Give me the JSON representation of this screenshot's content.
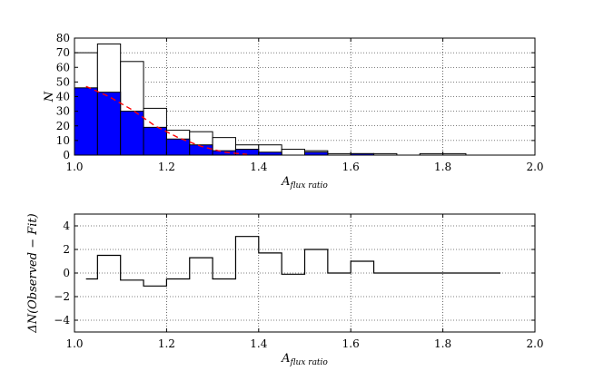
{
  "chart_data": [
    {
      "type": "bar",
      "title": "",
      "xlabel": "A",
      "xlabel_subscript": "flux ratio",
      "ylabel": "N",
      "xlim": [
        1.0,
        2.0
      ],
      "ylim": [
        0,
        80
      ],
      "xticks": [
        "1.0",
        "1.2",
        "1.4",
        "1.6",
        "1.8",
        "2.0"
      ],
      "yticks": [
        "0",
        "10",
        "20",
        "30",
        "40",
        "50",
        "60",
        "70",
        "80"
      ],
      "grid": true,
      "bin_width": 0.05,
      "bin_left_edges": [
        1.0,
        1.05,
        1.1,
        1.15,
        1.2,
        1.25,
        1.3,
        1.35,
        1.4,
        1.45,
        1.5,
        1.55,
        1.6,
        1.65,
        1.7,
        1.75,
        1.8,
        1.85,
        1.9,
        1.95
      ],
      "series": [
        {
          "style": "outline",
          "values": [
            70,
            76,
            64,
            32,
            17,
            16,
            12,
            7,
            7,
            4,
            3,
            1,
            1,
            1,
            0,
            1,
            1,
            0,
            0,
            0
          ]
        },
        {
          "style": "filled",
          "color": "#0000ff",
          "values": [
            46,
            43,
            30,
            19,
            11,
            7,
            3,
            4,
            2,
            0,
            2,
            0,
            1,
            0,
            0,
            0,
            0,
            0,
            0,
            0
          ]
        },
        {
          "style": "dashed-fit",
          "color": "#ff0000",
          "x": [
            1.025,
            1.075,
            1.125,
            1.175,
            1.225,
            1.275,
            1.325,
            1.375
          ],
          "values": [
            47,
            40,
            31,
            20,
            12,
            6,
            2,
            0.5
          ]
        }
      ]
    },
    {
      "type": "line",
      "title": "",
      "xlabel": "A",
      "xlabel_subscript": "flux ratio",
      "ylabel": "ΔN(Observed − Fit)",
      "xlim": [
        1.0,
        2.0
      ],
      "ylim": [
        -5,
        5
      ],
      "xticks": [
        "1.0",
        "1.2",
        "1.4",
        "1.6",
        "1.8",
        "2.0"
      ],
      "yticks": [
        "−4",
        "−2",
        "0",
        "2",
        "4"
      ],
      "grid": true,
      "step_edges": [
        1.025,
        1.05,
        1.1,
        1.15,
        1.2,
        1.25,
        1.3,
        1.35,
        1.4,
        1.45,
        1.5,
        1.55,
        1.6,
        1.65,
        1.925
      ],
      "step_values": [
        -0.5,
        1.5,
        -0.6,
        -1.1,
        -0.5,
        1.3,
        -0.5,
        3.1,
        1.7,
        -0.1,
        2.0,
        0.0,
        1.0,
        0.0
      ]
    }
  ]
}
